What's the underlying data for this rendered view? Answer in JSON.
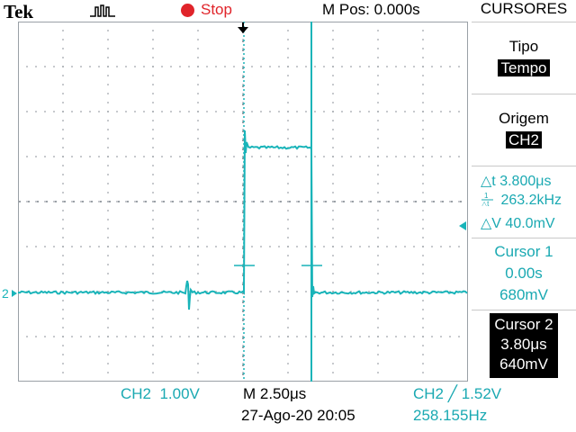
{
  "brand": "Tek",
  "status": {
    "run_state": "Stop",
    "m_pos": "M Pos: 0.000s"
  },
  "menu": {
    "title": "CURSORES",
    "tipo_label": "Tipo",
    "tipo_value": "Tempo",
    "origem_label": "Origem",
    "origem_value": "CH2",
    "readouts": {
      "delta_t": "△t 3.800μs",
      "freq": "263.2kHz",
      "delta_v": "△V 40.0mV"
    },
    "cursor1": {
      "title": "Cursor 1",
      "time": "0.00s",
      "volt": "680mV"
    },
    "cursor2": {
      "title": "Cursor 2",
      "time": "3.80μs",
      "volt": "640mV"
    }
  },
  "bottom": {
    "ch2_scale": "CH2  1.00V",
    "timebase": "M 2.50μs",
    "date": "27-Ago-20 20:05",
    "trigger": "CH2 ╱ 1.52V",
    "frequency": "258.155Hz"
  },
  "channel_marker": "2",
  "colors": {
    "trace": "#19b4b9",
    "stop": "#e0242a",
    "readout": "#1aa9b2"
  }
}
